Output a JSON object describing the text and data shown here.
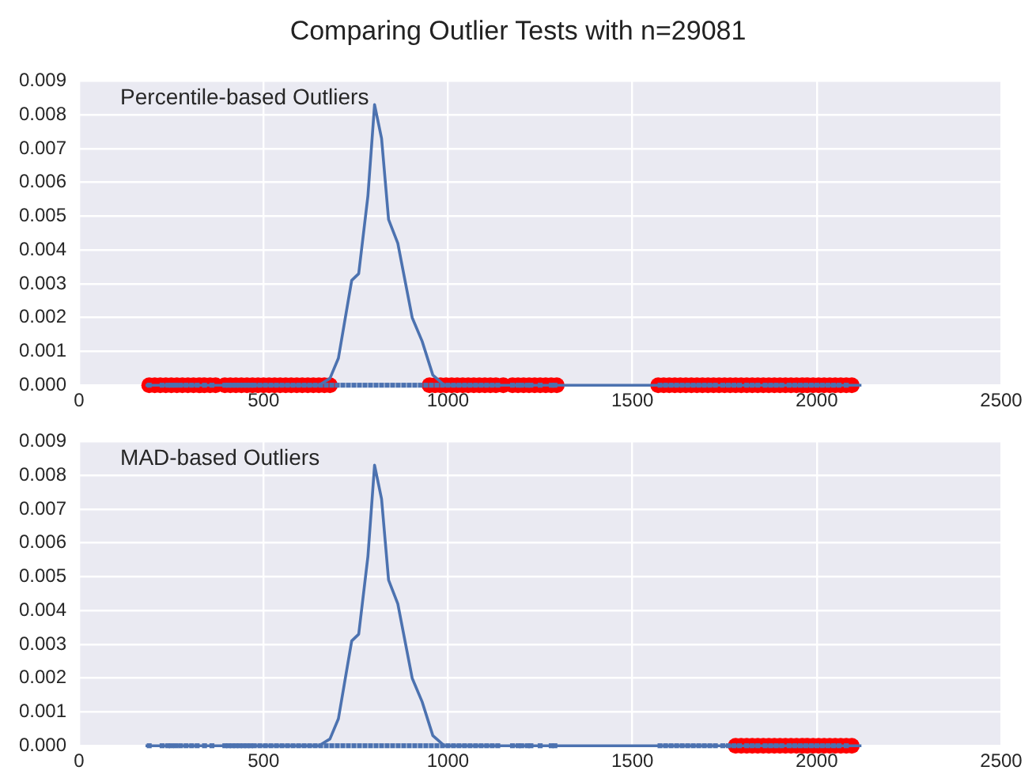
{
  "chart_data": [
    {
      "type": "line",
      "title": "Comparing Outlier Tests with n=29081",
      "annotations": [
        "Percentile-based Outliers"
      ],
      "xlim": [
        0,
        2500
      ],
      "xticks": [
        0,
        500,
        1000,
        1500,
        2000,
        2500
      ],
      "ylim": [
        0,
        0.009
      ],
      "yticks": [
        {
          "value": 0,
          "label": "0.000"
        },
        0.001,
        0.002,
        0.003,
        0.004,
        0.005,
        0.006,
        0.007,
        0.008,
        0.009
      ],
      "grid": true,
      "series": [
        {
          "color": "#4c72b0",
          "x": [
            180,
            400,
            600,
            650,
            680,
            703,
            739,
            758,
            783,
            801,
            820,
            839,
            864,
            903,
            930,
            959,
            990,
            1200,
            1600,
            2000,
            2121
          ],
          "values": [
            0,
            0,
            0,
            0,
            0.0002,
            0.0008,
            0.0031,
            0.0033,
            0.0056,
            0.0083,
            0.0073,
            0.0049,
            0.0042,
            0.002,
            0.0013,
            0.0003,
            0,
            0,
            0,
            0,
            0
          ]
        },
        {
          "type": "scatter",
          "color": "#4c72b0",
          "x": [
            190,
            225,
            240,
            250,
            262,
            275,
            290,
            305,
            320,
            340,
            360,
            395,
            405,
            415,
            425,
            435,
            445,
            455,
            465,
            475,
            490,
            505,
            520,
            535,
            550,
            565,
            580,
            595,
            610,
            625,
            640,
            655,
            670,
            685,
            700,
            715,
            730,
            745,
            760,
            775,
            790,
            805,
            820,
            835,
            850,
            865,
            880,
            895,
            910,
            925,
            940,
            955,
            970,
            985,
            1000,
            1015,
            1030,
            1045,
            1060,
            1075,
            1090,
            1105,
            1120,
            1135,
            1175,
            1190,
            1200,
            1215,
            1225,
            1250,
            1280,
            1290,
            1575,
            1590,
            1605,
            1620,
            1635,
            1650,
            1665,
            1680,
            1695,
            1710,
            1725,
            1745,
            1760,
            1775,
            1790,
            1810,
            1825,
            1840,
            1860,
            1875,
            1890,
            1905,
            1925,
            1940,
            1955,
            1970,
            1985,
            2000,
            2015,
            2030,
            2045,
            2060,
            2080
          ],
          "values": [
            0,
            0,
            0,
            0,
            0,
            0,
            0,
            0,
            0,
            0,
            0,
            0,
            0,
            0,
            0,
            0,
            0,
            0,
            0,
            0,
            0,
            0,
            0,
            0,
            0,
            0,
            0,
            0,
            0,
            0,
            0,
            0,
            0,
            0,
            0,
            0,
            0,
            0,
            0,
            0,
            0,
            0,
            0,
            0,
            0,
            0,
            0,
            0,
            0,
            0,
            0,
            0,
            0,
            0,
            0,
            0,
            0,
            0,
            0,
            0,
            0,
            0,
            0,
            0,
            0,
            0,
            0,
            0,
            0,
            0,
            0,
            0,
            0,
            0,
            0,
            0,
            0,
            0,
            0,
            0,
            0,
            0,
            0,
            0,
            0,
            0,
            0,
            0,
            0,
            0,
            0,
            0,
            0,
            0,
            0,
            0,
            0,
            0,
            0,
            0,
            0,
            0,
            0,
            0,
            0
          ]
        },
        {
          "type": "scatter",
          "color": "#ff0000",
          "marker": "circle",
          "x": [
            190,
            205,
            220,
            235,
            250,
            265,
            280,
            295,
            310,
            325,
            340,
            355,
            370,
            395,
            410,
            425,
            440,
            455,
            470,
            485,
            500,
            515,
            530,
            545,
            560,
            575,
            590,
            605,
            620,
            635,
            650,
            665,
            680,
            950,
            965,
            980,
            995,
            1010,
            1025,
            1040,
            1055,
            1070,
            1085,
            1100,
            1115,
            1130,
            1150,
            1175,
            1190,
            1205,
            1220,
            1235,
            1250,
            1265,
            1280,
            1295,
            1570,
            1585,
            1600,
            1615,
            1630,
            1645,
            1660,
            1675,
            1690,
            1705,
            1720,
            1735,
            1750,
            1765,
            1780,
            1795,
            1810,
            1825,
            1840,
            1855,
            1870,
            1885,
            1900,
            1915,
            1930,
            1945,
            1960,
            1975,
            1990,
            2005,
            2020,
            2035,
            2050,
            2065,
            2080,
            2095
          ],
          "values": [
            0,
            0,
            0,
            0,
            0,
            0,
            0,
            0,
            0,
            0,
            0,
            0,
            0,
            0,
            0,
            0,
            0,
            0,
            0,
            0,
            0,
            0,
            0,
            0,
            0,
            0,
            0,
            0,
            0,
            0,
            0,
            0,
            0,
            0,
            0,
            0,
            0,
            0,
            0,
            0,
            0,
            0,
            0,
            0,
            0,
            0,
            0,
            0,
            0,
            0,
            0,
            0,
            0,
            0,
            0,
            0,
            0,
            0,
            0,
            0,
            0,
            0,
            0,
            0,
            0,
            0,
            0,
            0,
            0,
            0,
            0,
            0,
            0,
            0,
            0,
            0,
            0,
            0,
            0,
            0,
            0,
            0,
            0,
            0,
            0,
            0,
            0,
            0,
            0,
            0,
            0,
            0
          ]
        }
      ]
    },
    {
      "type": "line",
      "annotations": [
        "MAD-based Outliers"
      ],
      "xlim": [
        0,
        2500
      ],
      "xticks": [
        0,
        500,
        1000,
        1500,
        2000,
        2500
      ],
      "ylim": [
        0,
        0.009
      ],
      "yticks": [
        {
          "value": 0,
          "label": "0.000"
        },
        0.001,
        0.002,
        0.003,
        0.004,
        0.005,
        0.006,
        0.007,
        0.008,
        0.009
      ],
      "grid": true,
      "series": [
        {
          "color": "#4c72b0",
          "x": [
            180,
            400,
            600,
            650,
            680,
            703,
            739,
            758,
            783,
            801,
            820,
            839,
            864,
            903,
            930,
            959,
            990,
            1200,
            1600,
            2000,
            2121
          ],
          "values": [
            0,
            0,
            0,
            0,
            0.0002,
            0.0008,
            0.0031,
            0.0033,
            0.0056,
            0.0083,
            0.0073,
            0.0049,
            0.0042,
            0.002,
            0.0013,
            0.0003,
            0,
            0,
            0,
            0,
            0
          ]
        },
        {
          "type": "scatter",
          "color": "#4c72b0",
          "x": [
            190,
            225,
            240,
            250,
            262,
            275,
            290,
            305,
            320,
            340,
            360,
            395,
            405,
            415,
            425,
            435,
            445,
            455,
            465,
            475,
            490,
            505,
            520,
            535,
            550,
            565,
            580,
            595,
            610,
            625,
            640,
            655,
            670,
            685,
            700,
            715,
            730,
            745,
            760,
            775,
            790,
            805,
            820,
            835,
            850,
            865,
            880,
            895,
            910,
            925,
            940,
            955,
            970,
            985,
            1000,
            1015,
            1030,
            1045,
            1060,
            1075,
            1090,
            1105,
            1120,
            1135,
            1175,
            1190,
            1200,
            1215,
            1225,
            1250,
            1280,
            1290,
            1575,
            1590,
            1605,
            1620,
            1635,
            1650,
            1665,
            1680,
            1695,
            1710,
            1725,
            1745,
            1760,
            1775,
            1790,
            1810,
            1825,
            1840,
            1860,
            1875,
            1890,
            1905,
            1925,
            1940,
            1955,
            1970,
            1985,
            2000,
            2015,
            2030,
            2045,
            2060,
            2080
          ],
          "values": [
            0,
            0,
            0,
            0,
            0,
            0,
            0,
            0,
            0,
            0,
            0,
            0,
            0,
            0,
            0,
            0,
            0,
            0,
            0,
            0,
            0,
            0,
            0,
            0,
            0,
            0,
            0,
            0,
            0,
            0,
            0,
            0,
            0,
            0,
            0,
            0,
            0,
            0,
            0,
            0,
            0,
            0,
            0,
            0,
            0,
            0,
            0,
            0,
            0,
            0,
            0,
            0,
            0,
            0,
            0,
            0,
            0,
            0,
            0,
            0,
            0,
            0,
            0,
            0,
            0,
            0,
            0,
            0,
            0,
            0,
            0,
            0,
            0,
            0,
            0,
            0,
            0,
            0,
            0,
            0,
            0,
            0,
            0,
            0,
            0,
            0,
            0,
            0,
            0,
            0,
            0,
            0,
            0,
            0,
            0,
            0,
            0,
            0,
            0,
            0,
            0,
            0,
            0,
            0,
            0
          ]
        },
        {
          "type": "scatter",
          "color": "#ff0000",
          "marker": "circle",
          "x": [
            1780,
            1795,
            1810,
            1825,
            1840,
            1855,
            1870,
            1885,
            1900,
            1915,
            1930,
            1945,
            1960,
            1975,
            1990,
            2005,
            2020,
            2035,
            2050,
            2065,
            2080,
            2095
          ],
          "values": [
            0,
            0,
            0,
            0,
            0,
            0,
            0,
            0,
            0,
            0,
            0,
            0,
            0,
            0,
            0,
            0,
            0,
            0,
            0,
            0,
            0,
            0
          ]
        }
      ]
    }
  ]
}
